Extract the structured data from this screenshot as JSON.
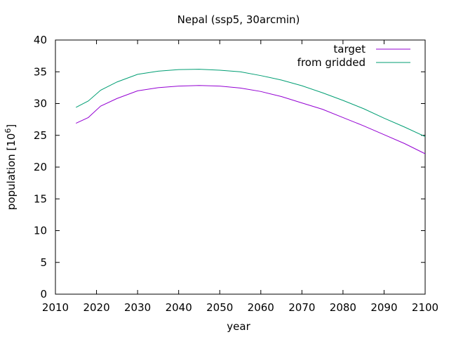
{
  "chart_data": {
    "type": "line",
    "title": "Nepal (ssp5, 30arcmin)",
    "xlabel": "year",
    "ylabel_prefix": "population [10",
    "ylabel_exponent": "6",
    "ylabel_suffix": "]",
    "xlim": [
      2010,
      2100
    ],
    "ylim": [
      0,
      40
    ],
    "xticks": [
      2010,
      2020,
      2030,
      2040,
      2050,
      2060,
      2070,
      2080,
      2090,
      2100
    ],
    "yticks": [
      0,
      5,
      10,
      15,
      20,
      25,
      30,
      35,
      40
    ],
    "grid": false,
    "legend_position": "top-right",
    "series": [
      {
        "name": "target",
        "color": "#9400d3",
        "x": [
          2015,
          2018,
          2021,
          2025,
          2030,
          2035,
          2040,
          2045,
          2050,
          2055,
          2060,
          2065,
          2070,
          2075,
          2080,
          2085,
          2090,
          2095,
          2100
        ],
        "y": [
          26.9,
          27.8,
          29.6,
          30.8,
          32.0,
          32.5,
          32.75,
          32.85,
          32.75,
          32.45,
          31.9,
          31.1,
          30.1,
          29.1,
          27.8,
          26.5,
          25.1,
          23.7,
          22.1
        ]
      },
      {
        "name": "from gridded",
        "color": "#009e73",
        "x": [
          2015,
          2018,
          2021,
          2025,
          2030,
          2035,
          2040,
          2045,
          2050,
          2055,
          2060,
          2065,
          2070,
          2075,
          2080,
          2085,
          2090,
          2095,
          2100
        ],
        "y": [
          29.4,
          30.4,
          32.1,
          33.4,
          34.6,
          35.1,
          35.35,
          35.4,
          35.25,
          35.0,
          34.4,
          33.7,
          32.8,
          31.7,
          30.5,
          29.2,
          27.7,
          26.3,
          24.8
        ]
      }
    ]
  }
}
